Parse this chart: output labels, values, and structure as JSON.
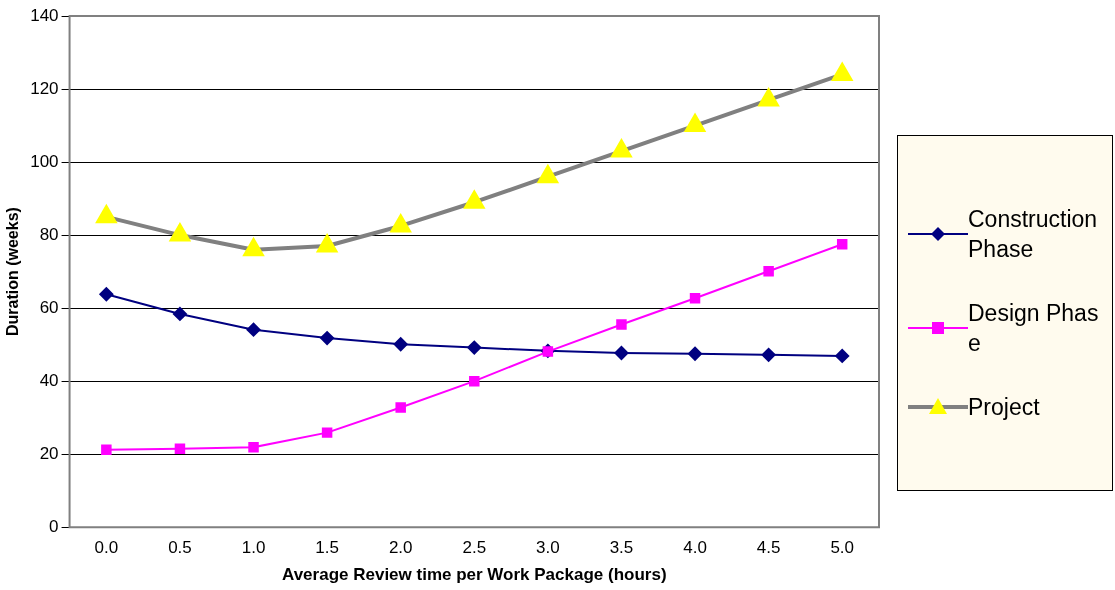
{
  "chart_data": {
    "type": "line",
    "xlabel": "Average Review time per Work Package (hours)",
    "ylabel": "Duration (weeks)",
    "categories": [
      "0.0",
      "0.5",
      "1.0",
      "1.5",
      "2.0",
      "2.5",
      "3.0",
      "3.5",
      "4.0",
      "4.5",
      "5.0"
    ],
    "series": [
      {
        "name": "Construction Phase",
        "color": "#000080",
        "marker": "diamond",
        "values": [
          63.8,
          58.4,
          54.1,
          51.8,
          50.1,
          49.2,
          48.3,
          47.7,
          47.5,
          47.2,
          46.9
        ]
      },
      {
        "name": "Design Phase",
        "color": "#ff00ff",
        "marker": "square",
        "values": [
          21.2,
          21.5,
          21.9,
          25.9,
          32.8,
          40,
          48.1,
          55.5,
          62.7,
          70.1,
          77.5
        ]
      },
      {
        "name": "Project",
        "color": "#808080",
        "marker": "triangle",
        "values": [
          85,
          80,
          76,
          77,
          82.5,
          89,
          96,
          103,
          110,
          117,
          124
        ]
      }
    ],
    "ylim": [
      0,
      140
    ],
    "yticks": [
      0,
      20,
      40,
      60,
      80,
      100,
      120,
      140
    ],
    "grid": "y",
    "legend": "right"
  }
}
